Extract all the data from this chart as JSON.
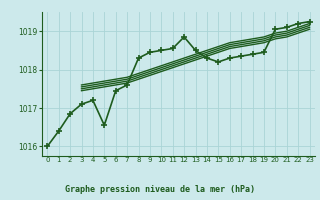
{
  "background_color": "#cce9eb",
  "plot_bg_color": "#cce9eb",
  "grid_color": "#aad4d6",
  "line_color": "#1e5c1e",
  "title": "Graphe pression niveau de la mer (hPa)",
  "xlim": [
    -0.5,
    23.5
  ],
  "ylim": [
    1015.75,
    1019.5
  ],
  "yticks": [
    1016,
    1017,
    1018,
    1019
  ],
  "xticks": [
    0,
    1,
    2,
    3,
    4,
    5,
    6,
    7,
    8,
    9,
    10,
    11,
    12,
    13,
    14,
    15,
    16,
    17,
    18,
    19,
    20,
    21,
    22,
    23
  ],
  "series": [
    {
      "x": [
        0,
        1,
        2,
        3,
        4,
        5,
        6,
        7,
        8,
        9,
        10,
        11,
        12,
        13,
        14,
        15,
        16,
        17,
        18,
        19,
        20,
        21,
        22,
        23
      ],
      "y": [
        1016.0,
        1016.4,
        1016.85,
        1017.1,
        1017.2,
        1016.55,
        1017.45,
        1017.6,
        1018.3,
        1018.45,
        1018.5,
        1018.55,
        1018.85,
        1018.5,
        1018.3,
        1018.2,
        1018.3,
        1018.35,
        1018.4,
        1018.45,
        1019.05,
        1019.1,
        1019.2,
        1019.25
      ],
      "marker": "+",
      "linewidth": 1.2,
      "markersize": 5
    },
    {
      "x": [
        3,
        4,
        5,
        6,
        7,
        8,
        9,
        10,
        11,
        12,
        13,
        14,
        15,
        16,
        17,
        18,
        19,
        20,
        21,
        22,
        23
      ],
      "y": [
        1017.45,
        1017.5,
        1017.55,
        1017.6,
        1017.65,
        1017.75,
        1017.85,
        1017.95,
        1018.05,
        1018.15,
        1018.25,
        1018.35,
        1018.45,
        1018.55,
        1018.6,
        1018.65,
        1018.7,
        1018.8,
        1018.85,
        1018.95,
        1019.05
      ],
      "marker": null,
      "linewidth": 1.0
    },
    {
      "x": [
        3,
        4,
        5,
        6,
        7,
        8,
        9,
        10,
        11,
        12,
        13,
        14,
        15,
        16,
        17,
        18,
        19,
        20,
        21,
        22,
        23
      ],
      "y": [
        1017.5,
        1017.55,
        1017.6,
        1017.65,
        1017.7,
        1017.8,
        1017.9,
        1018.0,
        1018.1,
        1018.2,
        1018.3,
        1018.4,
        1018.5,
        1018.6,
        1018.65,
        1018.7,
        1018.75,
        1018.85,
        1018.9,
        1019.0,
        1019.1
      ],
      "marker": null,
      "linewidth": 1.0
    },
    {
      "x": [
        3,
        4,
        5,
        6,
        7,
        8,
        9,
        10,
        11,
        12,
        13,
        14,
        15,
        16,
        17,
        18,
        19,
        20,
        21,
        22,
        23
      ],
      "y": [
        1017.55,
        1017.6,
        1017.65,
        1017.7,
        1017.75,
        1017.85,
        1017.95,
        1018.05,
        1018.15,
        1018.25,
        1018.35,
        1018.45,
        1018.55,
        1018.65,
        1018.7,
        1018.75,
        1018.8,
        1018.9,
        1018.95,
        1019.05,
        1019.15
      ],
      "marker": null,
      "linewidth": 1.0
    },
    {
      "x": [
        3,
        4,
        5,
        6,
        7,
        8,
        9,
        10,
        11,
        12,
        13,
        14,
        15,
        16,
        17,
        18,
        19,
        20,
        21,
        22,
        23
      ],
      "y": [
        1017.6,
        1017.65,
        1017.7,
        1017.75,
        1017.8,
        1017.9,
        1018.0,
        1018.1,
        1018.2,
        1018.3,
        1018.4,
        1018.5,
        1018.6,
        1018.7,
        1018.75,
        1018.8,
        1018.85,
        1018.95,
        1019.0,
        1019.1,
        1019.2
      ],
      "marker": null,
      "linewidth": 1.0
    }
  ]
}
